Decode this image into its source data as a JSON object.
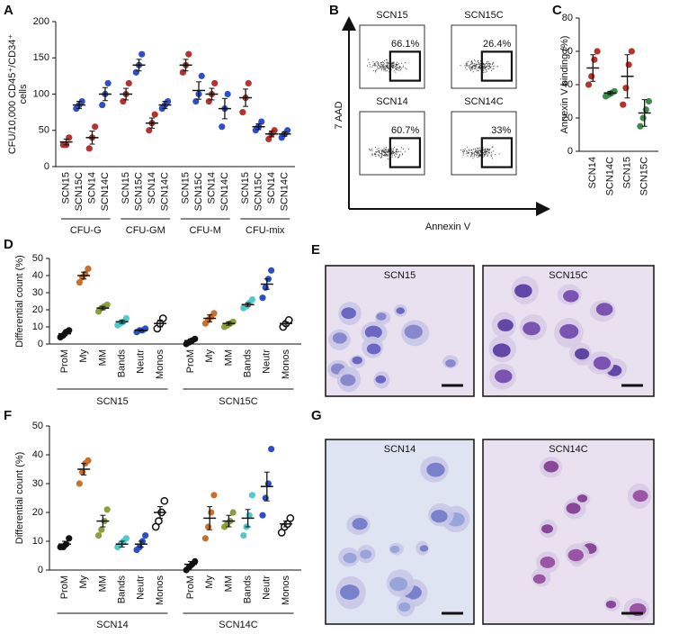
{
  "panel_labels": [
    "A",
    "B",
    "C",
    "D",
    "E",
    "F",
    "G"
  ],
  "chart_data": [
    {
      "type": "dot",
      "ylabel_lines": [
        "CFU/10,000 CD45⁺/CD34⁺",
        "cells"
      ],
      "ylim": [
        0,
        200
      ],
      "yticks": [
        0,
        50,
        100,
        150,
        200
      ],
      "groups": [
        {
          "name": "CFU-G",
          "items": [
            {
              "name": "SCN15",
              "color": "#b5332e",
              "points": [
                30,
                30,
                40
              ],
              "mean": 34,
              "sem": 4
            },
            {
              "name": "SCN15C",
              "color": "#2e4fc9",
              "points": [
                80,
                85,
                90
              ],
              "mean": 85,
              "sem": 5
            },
            {
              "name": "SCN14",
              "color": "#b5332e",
              "points": [
                25,
                40,
                55
              ],
              "mean": 40,
              "sem": 9
            },
            {
              "name": "SCN14C",
              "color": "#2e4fc9",
              "points": [
                85,
                100,
                115
              ],
              "mean": 100,
              "sem": 9
            }
          ]
        },
        {
          "name": "CFU-GM",
          "items": [
            {
              "name": "SCN15",
              "color": "#b5332e",
              "points": [
                90,
                100,
                115
              ],
              "mean": 100,
              "sem": 8
            },
            {
              "name": "SCN15C",
              "color": "#2e4fc9",
              "points": [
                130,
                140,
                155
              ],
              "mean": 140,
              "sem": 8
            },
            {
              "name": "SCN14",
              "color": "#b5332e",
              "points": [
                50,
                60,
                72
              ],
              "mean": 60,
              "sem": 7
            },
            {
              "name": "SCN14C",
              "color": "#2e4fc9",
              "points": [
                80,
                85,
                90
              ],
              "mean": 85,
              "sem": 5
            }
          ]
        },
        {
          "name": "CFU-M",
          "items": [
            {
              "name": "SCN15",
              "color": "#b5332e",
              "points": [
                130,
                140,
                155
              ],
              "mean": 140,
              "sem": 8
            },
            {
              "name": "SCN15C",
              "color": "#2e4fc9",
              "points": [
                90,
                100,
                125
              ],
              "mean": 105,
              "sem": 12
            },
            {
              "name": "SCN14",
              "color": "#b5332e",
              "points": [
                90,
                100,
                115
              ],
              "mean": 100,
              "sem": 8
            },
            {
              "name": "SCN14C",
              "color": "#2e4fc9",
              "points": [
                55,
                80,
                100
              ],
              "mean": 80,
              "sem": 14
            }
          ]
        },
        {
          "name": "CFU-mix",
          "items": [
            {
              "name": "SCN15",
              "color": "#b5332e",
              "points": [
                75,
                95,
                115
              ],
              "mean": 95,
              "sem": 12
            },
            {
              "name": "SCN15C",
              "color": "#2e4fc9",
              "points": [
                50,
                55,
                62
              ],
              "mean": 55,
              "sem": 4
            },
            {
              "name": "SCN14",
              "color": "#b5332e",
              "points": [
                38,
                45,
                50
              ],
              "mean": 45,
              "sem": 4
            },
            {
              "name": "SCN14C",
              "color": "#2e4fc9",
              "points": [
                40,
                45,
                50
              ],
              "mean": 45,
              "sem": 3
            }
          ]
        }
      ]
    },
    {
      "type": "dot",
      "ylabel_lines": [
        "Annexin V binding (%)"
      ],
      "ylim": [
        0,
        80
      ],
      "yticks": [
        0,
        20,
        40,
        60,
        80
      ],
      "groups": [
        {
          "items": [
            {
              "name": "SCN14",
              "color": "#b5332e",
              "points": [
                40,
                45,
                55,
                60
              ],
              "mean": 50,
              "sem": 8
            },
            {
              "name": "SCN14C",
              "color": "#3d8a4f",
              "points": [
                33,
                34,
                35,
                36
              ],
              "mean": 35,
              "sem": 1
            },
            {
              "name": "SCN15",
              "color": "#b5332e",
              "points": [
                28,
                38,
                52,
                60
              ],
              "mean": 45,
              "sem": 13
            },
            {
              "name": "SCN15C",
              "color": "#3d8a4f",
              "points": [
                15,
                20,
                25,
                30
              ],
              "mean": 23,
              "sem": 8
            }
          ]
        }
      ]
    },
    {
      "type": "dot",
      "ylabel_lines": [
        "Differential count (%)"
      ],
      "ylim": [
        0,
        50
      ],
      "yticks": [
        0,
        10,
        20,
        30,
        40,
        50
      ],
      "groups": [
        {
          "name": "SCN15",
          "items": [
            {
              "name": "ProM",
              "color": "#111111",
              "points": [
                4,
                5,
                7,
                8
              ],
              "mean": 6,
              "sem": 1
            },
            {
              "name": "My",
              "color": "#c8702e",
              "points": [
                36,
                39,
                41,
                44
              ],
              "mean": 40,
              "sem": 2
            },
            {
              "name": "MM",
              "color": "#8aa03a",
              "points": [
                19,
                21,
                22,
                23
              ],
              "mean": 21,
              "sem": 1
            },
            {
              "name": "Bands",
              "color": "#4fc9c9",
              "points": [
                11,
                12,
                13,
                15
              ],
              "mean": 13,
              "sem": 1
            },
            {
              "name": "Neutr",
              "color": "#2a4fc9",
              "points": [
                7,
                8,
                8,
                9
              ],
              "mean": 8,
              "sem": 0.5
            },
            {
              "name": "Monos",
              "color": "#111111",
              "marker": "open",
              "points": [
                9,
                12,
                15
              ],
              "mean": 12,
              "sem": 2
            }
          ]
        },
        {
          "name": "SCN15C",
          "items": [
            {
              "name": "ProM",
              "color": "#111111",
              "points": [
                0,
                1,
                2,
                3
              ],
              "mean": 2,
              "sem": 1
            },
            {
              "name": "My",
              "color": "#c8702e",
              "points": [
                12,
                14,
                16,
                18
              ],
              "mean": 15,
              "sem": 2
            },
            {
              "name": "MM",
              "color": "#8aa03a",
              "points": [
                10,
                11,
                12,
                13
              ],
              "mean": 12,
              "sem": 1
            },
            {
              "name": "Bands",
              "color": "#4fc9c9",
              "points": [
                21,
                22,
                24,
                26
              ],
              "mean": 23,
              "sem": 1
            },
            {
              "name": "Neutr",
              "color": "#2a4fc9",
              "points": [
                27,
                33,
                38,
                43
              ],
              "mean": 35,
              "sem": 3
            },
            {
              "name": "Monos",
              "color": "#111111",
              "marker": "open",
              "points": [
                10,
                12,
                14
              ],
              "mean": 12,
              "sem": 1
            }
          ]
        }
      ]
    },
    {
      "type": "dot",
      "ylabel_lines": [
        "Differential count (%)"
      ],
      "ylim": [
        0,
        50
      ],
      "yticks": [
        0,
        10,
        20,
        30,
        40,
        50
      ],
      "groups": [
        {
          "name": "SCN14",
          "items": [
            {
              "name": "ProM",
              "color": "#111111",
              "points": [
                8,
                8,
                9,
                11
              ],
              "mean": 9,
              "sem": 1
            },
            {
              "name": "My",
              "color": "#c8702e",
              "points": [
                30,
                34,
                37,
                38
              ],
              "mean": 35,
              "sem": 2
            },
            {
              "name": "MM",
              "color": "#8aa03a",
              "points": [
                12,
                14,
                17,
                21
              ],
              "mean": 17,
              "sem": 2
            },
            {
              "name": "Bands",
              "color": "#4fc9c9",
              "points": [
                8,
                9,
                10,
                11
              ],
              "mean": 9,
              "sem": 1
            },
            {
              "name": "Neutr",
              "color": "#2a4fc9",
              "points": [
                7,
                8,
                10,
                12
              ],
              "mean": 9,
              "sem": 1
            },
            {
              "name": "Monos",
              "color": "#111111",
              "marker": "open",
              "points": [
                15,
                17,
                20,
                24
              ],
              "mean": 20,
              "sem": 2
            }
          ]
        },
        {
          "name": "SCN14C",
          "items": [
            {
              "name": "ProM",
              "color": "#111111",
              "points": [
                0,
                1,
                2,
                3
              ],
              "mean": 2,
              "sem": 1
            },
            {
              "name": "My",
              "color": "#c8702e",
              "points": [
                11,
                15,
                20,
                26
              ],
              "mean": 18,
              "sem": 4
            },
            {
              "name": "MM",
              "color": "#8aa03a",
              "points": [
                15,
                16,
                17,
                20
              ],
              "mean": 17,
              "sem": 2
            },
            {
              "name": "Bands",
              "color": "#4fc9c9",
              "points": [
                12,
                15,
                19,
                26
              ],
              "mean": 18,
              "sem": 3
            },
            {
              "name": "Neutr",
              "color": "#2a4fc9",
              "points": [
                19,
                25,
                30,
                42
              ],
              "mean": 29,
              "sem": 5
            },
            {
              "name": "Monos",
              "color": "#111111",
              "marker": "open",
              "points": [
                13,
                15,
                16,
                18
              ],
              "mean": 16,
              "sem": 1
            }
          ]
        }
      ]
    }
  ],
  "flow": {
    "axis_x": "Annexin V",
    "axis_y": "7 AAD",
    "plots": [
      {
        "name": "SCN15",
        "gate_label": "66.1%"
      },
      {
        "name": "SCN15C",
        "gate_label": "26.4%"
      },
      {
        "name": "SCN14",
        "gate_label": "60.7%"
      },
      {
        "name": "SCN14C",
        "gate_label": "33%"
      }
    ]
  },
  "micrographs": [
    {
      "title": "SCN15"
    },
    {
      "title": "SCN15C"
    },
    {
      "title": "SCN14"
    },
    {
      "title": "SCN14C"
    }
  ]
}
